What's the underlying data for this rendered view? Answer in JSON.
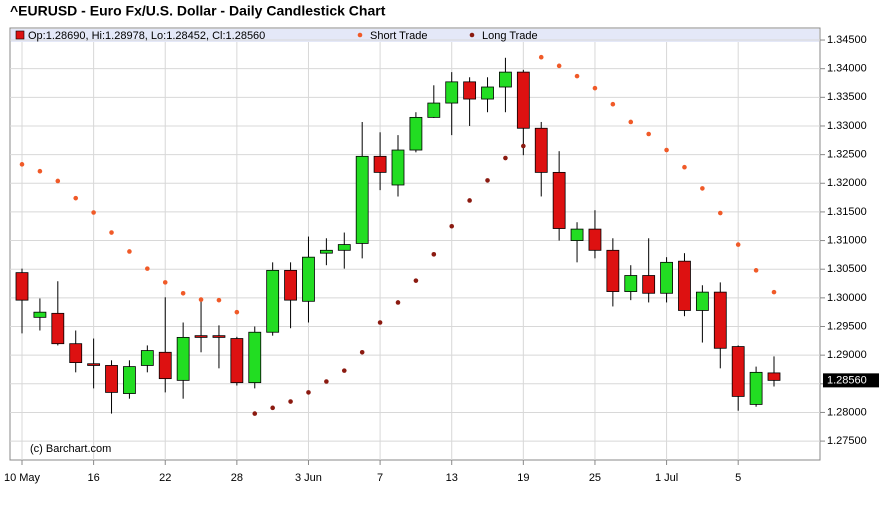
{
  "chart_data": {
    "type": "candlestick",
    "title": "^EURUSD - Euro Fx/U.S. Dollar - Daily Candlestick Chart",
    "ohlc_label": "Op:1.28690, Hi:1.28978, Lo:1.28452, Cl:1.28560",
    "credit": "(c) Barchart.com",
    "categories": [
      "10 May",
      null,
      null,
      null,
      "16",
      null,
      null,
      null,
      "22",
      null,
      null,
      null,
      "28",
      null,
      null,
      null,
      "3 Jun",
      null,
      null,
      null,
      "7",
      null,
      null,
      null,
      "13",
      null,
      null,
      null,
      "19",
      null,
      null,
      null,
      "25",
      null,
      null,
      null,
      "1 Jul",
      null,
      null,
      null,
      "5",
      null,
      null
    ],
    "open": [
      1.3044,
      1.2966,
      1.2973,
      1.292,
      1.2885,
      1.2882,
      1.2833,
      1.2882,
      1.2905,
      1.2856,
      1.2934,
      1.2934,
      1.2929,
      1.2852,
      1.294,
      1.3048,
      1.2994,
      1.3078,
      1.3083,
      1.3095,
      1.3247,
      1.3197,
      1.3258,
      1.3315,
      1.334,
      1.3377,
      1.3347,
      1.3368,
      1.3394,
      1.3296,
      1.3219,
      1.31,
      1.312,
      1.3083,
      1.3011,
      1.3039,
      1.3008,
      1.3064,
      1.2978,
      1.301,
      1.2915,
      1.2814,
      1.2869
    ],
    "high": [
      1.3051,
      1.2999,
      1.3029,
      1.2943,
      1.2929,
      1.2891,
      1.2891,
      1.2917,
      1.3001,
      1.2957,
      1.2996,
      1.2952,
      1.2932,
      1.295,
      1.3062,
      1.3062,
      1.3107,
      1.3104,
      1.3114,
      1.3307,
      1.3289,
      1.3284,
      1.3324,
      1.3371,
      1.3394,
      1.3385,
      1.3385,
      1.3419,
      1.3398,
      1.3307,
      1.3256,
      1.3132,
      1.3153,
      1.3104,
      1.3057,
      1.3104,
      1.3071,
      1.3078,
      1.3022,
      1.3027,
      1.2917,
      1.288,
      1.28978
    ],
    "low": [
      1.2938,
      1.2943,
      1.2917,
      1.287,
      1.2842,
      1.2798,
      1.2824,
      1.287,
      1.2835,
      1.2824,
      1.2905,
      1.2877,
      1.2847,
      1.2842,
      1.2934,
      1.2947,
      1.2957,
      1.3057,
      1.3051,
      1.3069,
      1.3188,
      1.3177,
      1.3254,
      1.3314,
      1.3284,
      1.33,
      1.3324,
      1.3324,
      1.3249,
      1.3177,
      1.31,
      1.3062,
      1.3069,
      1.2985,
      1.2996,
      1.2992,
      1.2992,
      1.2968,
      1.2922,
      1.2877,
      1.2803,
      1.281,
      1.28452
    ],
    "close": [
      1.2996,
      1.2975,
      1.292,
      1.2887,
      1.2882,
      1.2835,
      1.288,
      1.2908,
      1.2859,
      1.2931,
      1.2931,
      1.2931,
      1.2852,
      1.294,
      1.3048,
      1.2996,
      1.3071,
      1.3083,
      1.3093,
      1.3247,
      1.3219,
      1.3258,
      1.3315,
      1.334,
      1.3377,
      1.3347,
      1.3368,
      1.3394,
      1.3296,
      1.3219,
      1.3121,
      1.312,
      1.3083,
      1.3011,
      1.3039,
      1.3008,
      1.3062,
      1.2978,
      1.301,
      1.2912,
      1.2828,
      1.287,
      1.2856
    ],
    "up_color": "#22dd22",
    "down_color": "#dd1111",
    "series": [
      {
        "name": "Short Trade",
        "color": "#f05a28",
        "values": [
          1.3233,
          1.3221,
          1.3204,
          1.3174,
          1.3149,
          1.3114,
          1.3081,
          1.3051,
          1.3027,
          1.3008,
          1.2997,
          1.2996,
          1.2975,
          null,
          null,
          null,
          null,
          null,
          null,
          null,
          null,
          null,
          null,
          null,
          null,
          null,
          null,
          null,
          null,
          1.342,
          1.3405,
          1.3387,
          1.3366,
          1.3338,
          1.3307,
          1.3286,
          1.3258,
          1.3228,
          1.3191,
          1.3148,
          1.3093,
          1.3048,
          1.301
        ]
      },
      {
        "name": "Long Trade",
        "color": "#8b1a10",
        "values": [
          null,
          null,
          null,
          null,
          null,
          null,
          null,
          null,
          null,
          null,
          null,
          null,
          null,
          1.2798,
          1.2808,
          1.2819,
          1.2835,
          1.2854,
          1.2873,
          1.2905,
          1.2957,
          1.2992,
          1.303,
          1.3076,
          1.3125,
          1.317,
          1.3205,
          1.3244,
          1.3265,
          null,
          null,
          null,
          null,
          null,
          null,
          null,
          null,
          null,
          null,
          null,
          null,
          null,
          null
        ]
      }
    ],
    "last_price": {
      "value": 1.2856,
      "label": "1.28560"
    },
    "ylim": [
      1.2717,
      1.3471
    ],
    "yticks": [
      {
        "value": 1.275,
        "label": "1.27500"
      },
      {
        "value": 1.28,
        "label": "1.28000"
      },
      {
        "value": 1.285,
        "label": "1.28500"
      },
      {
        "value": 1.29,
        "label": "1.29000"
      },
      {
        "value": 1.295,
        "label": "1.29500"
      },
      {
        "value": 1.3,
        "label": "1.30000"
      },
      {
        "value": 1.305,
        "label": "1.30500"
      },
      {
        "value": 1.31,
        "label": "1.31000"
      },
      {
        "value": 1.315,
        "label": "1.31500"
      },
      {
        "value": 1.32,
        "label": "1.32000"
      },
      {
        "value": 1.325,
        "label": "1.32500"
      },
      {
        "value": 1.33,
        "label": "1.33000"
      },
      {
        "value": 1.335,
        "label": "1.33500"
      },
      {
        "value": 1.34,
        "label": "1.34000"
      },
      {
        "value": 1.345,
        "label": "1.34500"
      }
    ],
    "grid": true
  }
}
